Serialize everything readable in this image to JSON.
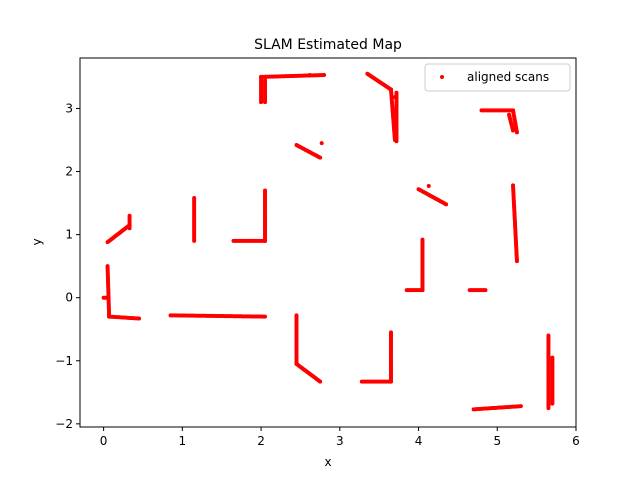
{
  "chart_data": {
    "type": "scatter",
    "title": "SLAM Estimated Map",
    "xlabel": "x",
    "ylabel": "y",
    "xlim": [
      -0.3,
      6.0
    ],
    "ylim": [
      -2.05,
      3.8
    ],
    "xticks": [
      0,
      1,
      2,
      3,
      4,
      5,
      6
    ],
    "yticks": [
      -2,
      -1,
      0,
      1,
      2,
      3
    ],
    "grid": false,
    "legend_position": "top-right",
    "series": [
      {
        "name": "aligned scans",
        "color": "#ff0000",
        "segments": [
          [
            [
              0.0,
              0.0
            ],
            [
              0.05,
              0.0
            ]
          ],
          [
            [
              0.05,
              0.5
            ],
            [
              0.07,
              -0.3
            ]
          ],
          [
            [
              0.07,
              -0.3
            ],
            [
              0.45,
              -0.33
            ]
          ],
          [
            [
              0.05,
              0.88
            ],
            [
              0.33,
              1.15
            ]
          ],
          [
            [
              0.33,
              1.1
            ],
            [
              0.33,
              1.3
            ]
          ],
          [
            [
              0.85,
              -0.28
            ],
            [
              2.05,
              -0.3
            ]
          ],
          [
            [
              1.15,
              0.9
            ],
            [
              1.15,
              1.58
            ]
          ],
          [
            [
              1.65,
              0.9
            ],
            [
              2.05,
              0.9
            ]
          ],
          [
            [
              2.05,
              0.9
            ],
            [
              2.05,
              1.7
            ]
          ],
          [
            [
              2.0,
              3.5
            ],
            [
              2.8,
              3.53
            ]
          ],
          [
            [
              2.0,
              3.5
            ],
            [
              2.0,
              3.1
            ]
          ],
          [
            [
              2.05,
              3.45
            ],
            [
              2.05,
              3.1
            ]
          ],
          [
            [
              2.45,
              2.42
            ],
            [
              2.75,
              2.22
            ]
          ],
          [
            [
              2.45,
              -0.28
            ],
            [
              2.45,
              -1.05
            ]
          ],
          [
            [
              2.45,
              -1.05
            ],
            [
              2.75,
              -1.33
            ]
          ],
          [
            [
              3.35,
              3.55
            ],
            [
              3.65,
              3.3
            ]
          ],
          [
            [
              3.65,
              3.3
            ],
            [
              3.7,
              2.5
            ]
          ],
          [
            [
              3.72,
              3.25
            ],
            [
              3.72,
              2.48
            ]
          ],
          [
            [
              3.28,
              -1.33
            ],
            [
              3.65,
              -1.33
            ]
          ],
          [
            [
              3.65,
              -1.33
            ],
            [
              3.65,
              -0.55
            ]
          ],
          [
            [
              3.85,
              0.12
            ],
            [
              4.05,
              0.12
            ]
          ],
          [
            [
              4.05,
              0.12
            ],
            [
              4.05,
              0.92
            ]
          ],
          [
            [
              4.0,
              1.72
            ],
            [
              4.35,
              1.48
            ]
          ],
          [
            [
              4.65,
              0.12
            ],
            [
              4.85,
              0.12
            ]
          ],
          [
            [
              4.8,
              2.97
            ],
            [
              5.2,
              2.97
            ]
          ],
          [
            [
              5.2,
              2.97
            ],
            [
              5.25,
              2.62
            ]
          ],
          [
            [
              5.15,
              2.9
            ],
            [
              5.2,
              2.65
            ]
          ],
          [
            [
              5.2,
              1.78
            ],
            [
              5.25,
              0.58
            ]
          ],
          [
            [
              4.7,
              -1.77
            ],
            [
              5.3,
              -1.72
            ]
          ],
          [
            [
              5.65,
              -0.6
            ],
            [
              5.65,
              -1.75
            ]
          ],
          [
            [
              5.7,
              -0.95
            ],
            [
              5.7,
              -1.68
            ]
          ]
        ],
        "points": [
          [
            2.77,
            2.45
          ],
          [
            4.13,
            1.77
          ],
          [
            2.62,
            3.53
          ],
          [
            3.7,
            3.18
          ]
        ]
      }
    ]
  }
}
